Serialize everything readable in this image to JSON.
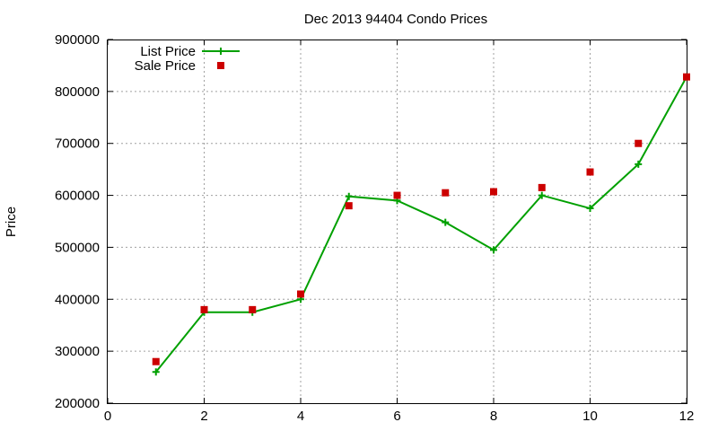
{
  "chart_data": {
    "type": "line",
    "title": "Dec 2013 94404 Condo Prices",
    "xlabel": "",
    "ylabel": "Price",
    "xlim": [
      0,
      12
    ],
    "ylim": [
      200000,
      900000
    ],
    "xticks": [
      "0",
      "2",
      "4",
      "6",
      "8",
      "10",
      "12"
    ],
    "yticks": [
      "200000",
      "300000",
      "400000",
      "500000",
      "600000",
      "700000",
      "800000",
      "900000"
    ],
    "grid": true,
    "legend_position": "top-left",
    "series": [
      {
        "name": "List Price",
        "style": "line-with-plus-markers",
        "color": "#00a000",
        "x": [
          1,
          2,
          3,
          4,
          5,
          6,
          7,
          8,
          9,
          10,
          11,
          12
        ],
        "y": [
          260000,
          375000,
          375000,
          400000,
          598000,
          590000,
          548000,
          495000,
          600000,
          575000,
          660000,
          828000
        ]
      },
      {
        "name": "Sale Price",
        "style": "square-markers",
        "color": "#cc0000",
        "x": [
          1,
          2,
          3,
          4,
          5,
          6,
          7,
          8,
          9,
          10,
          11,
          12
        ],
        "y": [
          280000,
          380000,
          380000,
          410000,
          580000,
          600000,
          605000,
          607000,
          615000,
          645000,
          700000,
          828000
        ]
      }
    ]
  }
}
